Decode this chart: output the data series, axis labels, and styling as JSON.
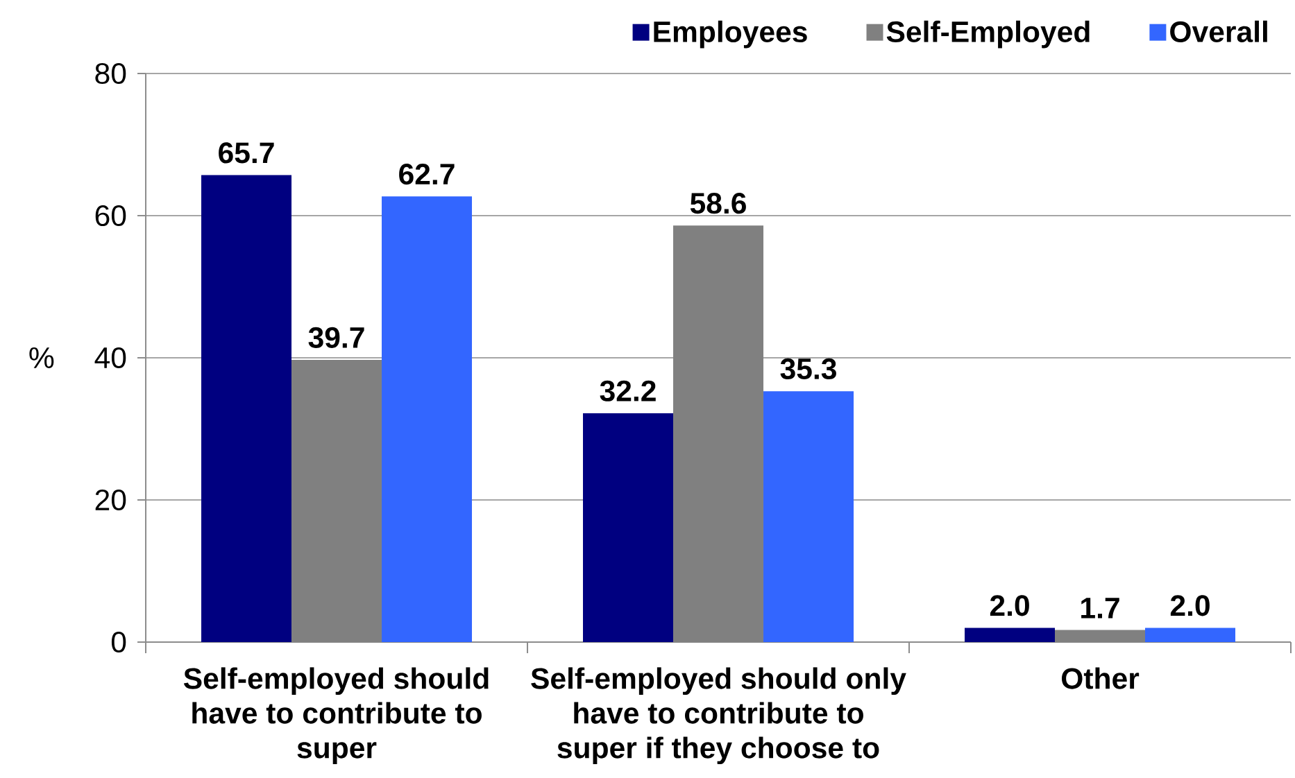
{
  "chart_data": {
    "type": "bar",
    "ylabel": "%",
    "categories": [
      "Self-employed should have to contribute to super",
      "Self-employed should only have to contribute to super if they choose to",
      "Other"
    ],
    "series": [
      {
        "name": "Employees",
        "color": "#000080",
        "values": [
          65.7,
          32.2,
          2.0
        ],
        "value_labels": [
          "65.7",
          "32.2",
          "2.0"
        ]
      },
      {
        "name": "Self-Employed",
        "color": "#808080",
        "values": [
          39.7,
          58.6,
          1.7
        ],
        "value_labels": [
          "39.7",
          "58.6",
          "1.7"
        ]
      },
      {
        "name": "Overall",
        "color": "#3366ff",
        "values": [
          62.7,
          35.3,
          2.0
        ],
        "value_labels": [
          "62.7",
          "35.3",
          "2.0"
        ]
      }
    ],
    "ylim": [
      0,
      80
    ],
    "yticks": [
      0,
      20,
      40,
      60,
      80
    ],
    "grid": "y",
    "legend": "top right"
  }
}
